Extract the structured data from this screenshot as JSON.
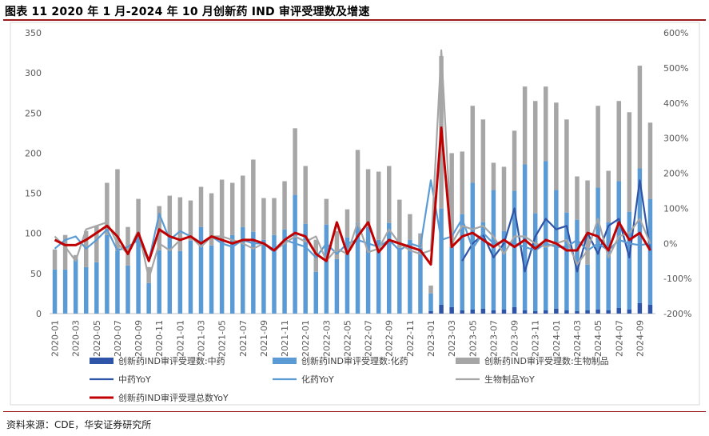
{
  "title": "图表 11 2020 年 1 月-2024 年 10 月创新药 IND 审评受理数及增速",
  "source": "资料来源：CDE，华安证券研究所",
  "chart_data": {
    "type": "bar",
    "stacked": true,
    "x": [
      "2020-01",
      "2020-02",
      "2020-03",
      "2020-04",
      "2020-05",
      "2020-06",
      "2020-07",
      "2020-08",
      "2020-09",
      "2020-10",
      "2020-11",
      "2020-12",
      "2021-01",
      "2021-02",
      "2021-03",
      "2021-04",
      "2021-05",
      "2021-06",
      "2021-07",
      "2021-08",
      "2021-09",
      "2021-10",
      "2021-11",
      "2021-12",
      "2022-01",
      "2022-02",
      "2022-03",
      "2022-04",
      "2022-05",
      "2022-06",
      "2022-07",
      "2022-08",
      "2022-09",
      "2022-10",
      "2022-11",
      "2022-12",
      "2023-01",
      "2023-02",
      "2023-03",
      "2023-04",
      "2023-05",
      "2023-06",
      "2023-07",
      "2023-08",
      "2023-09",
      "2023-10",
      "2023-11",
      "2023-12",
      "2024-01",
      "2024-02",
      "2024-03",
      "2024-04",
      "2024-05",
      "2024-06",
      "2024-07",
      "2024-08",
      "2024-09",
      "2024-10"
    ],
    "tick_labels": [
      "2020-01",
      "2020-03",
      "2020-05",
      "2020-07",
      "2020-09",
      "2020-11",
      "2021-01",
      "2021-03",
      "2021-05",
      "2021-07",
      "2021-09",
      "2021-11",
      "2022-01",
      "2022-03",
      "2022-05",
      "2022-07",
      "2022-09",
      "2022-11",
      "2023-01",
      "2023-03",
      "2023-05",
      "2023-07",
      "2023-09",
      "2023-11",
      "2024-01",
      "2024-03",
      "2024-05",
      "2024-07",
      "2024-09"
    ],
    "y_left": {
      "min": 0,
      "max": 350,
      "ticks": [
        "0",
        "50",
        "100",
        "150",
        "200",
        "250",
        "300",
        "350"
      ]
    },
    "y_right": {
      "min": -200,
      "max": 600,
      "ticks": [
        "-200%",
        "-100%",
        "0%",
        "100%",
        "200%",
        "300%",
        "400%",
        "500%",
        "600%"
      ]
    },
    "grid": false,
    "legend_position": "bottom",
    "bar_series": [
      {
        "name": "创新药IND审评受理数:中药",
        "color": "#2f55a8",
        "values": [
          0,
          0,
          0,
          0,
          0,
          0,
          0,
          0,
          0,
          0,
          0,
          0,
          0,
          0,
          0,
          0,
          0,
          0,
          0,
          0,
          0,
          0,
          0,
          0,
          0,
          0,
          0,
          0,
          0,
          0,
          0,
          0,
          0,
          0,
          0,
          0,
          3,
          11,
          8,
          4,
          5,
          6,
          4,
          5,
          8,
          4,
          3,
          4,
          6,
          4,
          3,
          4,
          5,
          4,
          7,
          5,
          13,
          11
        ]
      },
      {
        "name": "创新药IND审评受理数:化药",
        "color": "#5b9bd5",
        "values": [
          55,
          55,
          68,
          58,
          64,
          98,
          78,
          60,
          98,
          38,
          79,
          94,
          78,
          91,
          108,
          85,
          92,
          98,
          108,
          102,
          92,
          98,
          105,
          148,
          112,
          52,
          111,
          68,
          95,
          113,
          108,
          92,
          113,
          82,
          92,
          82,
          22,
          120,
          75,
          120,
          158,
          108,
          150,
          98,
          145,
          182,
          122,
          186,
          148,
          122,
          114,
          57,
          152,
          110,
          158,
          122,
          168,
          132
        ]
      },
      {
        "name": "创新药IND审评受理数:生物制品",
        "color": "#a6a6a6",
        "values": [
          25,
          43,
          5,
          45,
          45,
          65,
          102,
          48,
          45,
          20,
          55,
          53,
          67,
          50,
          50,
          65,
          75,
          65,
          64,
          90,
          52,
          46,
          60,
          83,
          72,
          40,
          32,
          35,
          35,
          91,
          72,
          85,
          71,
          60,
          32,
          18,
          10,
          190,
          117,
          78,
          96,
          128,
          34,
          80,
          75,
          97,
          140,
          93,
          109,
          116,
          54,
          105,
          102,
          64,
          100,
          124,
          128,
          95
        ]
      }
    ],
    "line_series": [
      {
        "name": "中药YoY",
        "color": "#2f55a8",
        "values": [
          null,
          null,
          null,
          null,
          null,
          null,
          null,
          null,
          null,
          null,
          null,
          null,
          null,
          null,
          null,
          null,
          null,
          null,
          null,
          null,
          null,
          null,
          null,
          null,
          null,
          null,
          null,
          null,
          null,
          null,
          null,
          null,
          null,
          null,
          null,
          null,
          null,
          null,
          null,
          -50,
          0,
          25,
          -40,
          0,
          100,
          -80,
          20,
          70,
          40,
          50,
          -80,
          30,
          -30,
          50,
          70,
          -40,
          180,
          -20
        ]
      },
      {
        "name": "化药YoY",
        "color": "#5b9bd5",
        "values": [
          -15,
          10,
          20,
          -15,
          10,
          40,
          -20,
          -10,
          10,
          -50,
          85,
          10,
          35,
          20,
          0,
          20,
          0,
          -10,
          10,
          0,
          0,
          -25,
          10,
          0,
          -10,
          -40,
          0,
          -30,
          0,
          10,
          0,
          -10,
          10,
          -20,
          0,
          -10,
          180,
          10,
          20,
          70,
          -15,
          30,
          0,
          5,
          0,
          -10,
          -20,
          0,
          -10,
          -10,
          10,
          -20,
          0,
          -20,
          10,
          0,
          -5,
          0
        ]
      },
      {
        "name": "生物制品YoY",
        "color": "#a6a6a6",
        "values": [
          20,
          -10,
          -50,
          40,
          50,
          60,
          0,
          -30,
          40,
          -100,
          0,
          -20,
          10,
          20,
          -10,
          20,
          20,
          10,
          0,
          -15,
          0,
          -20,
          0,
          20,
          5,
          20,
          -50,
          -15,
          -30,
          60,
          -25,
          -15,
          40,
          0,
          -20,
          -30,
          -20,
          550,
          0,
          50,
          40,
          50,
          20,
          -30,
          20,
          20,
          0,
          -10,
          0,
          10,
          -60,
          -20,
          70,
          -40,
          20,
          30,
          70,
          0
        ]
      },
      {
        "name": "创新药IND审评受理总数YoY",
        "color": "#c00000",
        "values": [
          10,
          -5,
          -5,
          10,
          30,
          50,
          20,
          -30,
          30,
          -50,
          40,
          20,
          10,
          20,
          0,
          20,
          10,
          0,
          10,
          10,
          0,
          -20,
          10,
          30,
          20,
          -30,
          -50,
          60,
          -30,
          20,
          60,
          -25,
          10,
          0,
          -10,
          -20,
          -60,
          330,
          -10,
          20,
          30,
          10,
          -10,
          10,
          -10,
          10,
          -15,
          10,
          0,
          -20,
          -20,
          30,
          20,
          -20,
          60,
          10,
          30,
          -20
        ]
      }
    ]
  }
}
